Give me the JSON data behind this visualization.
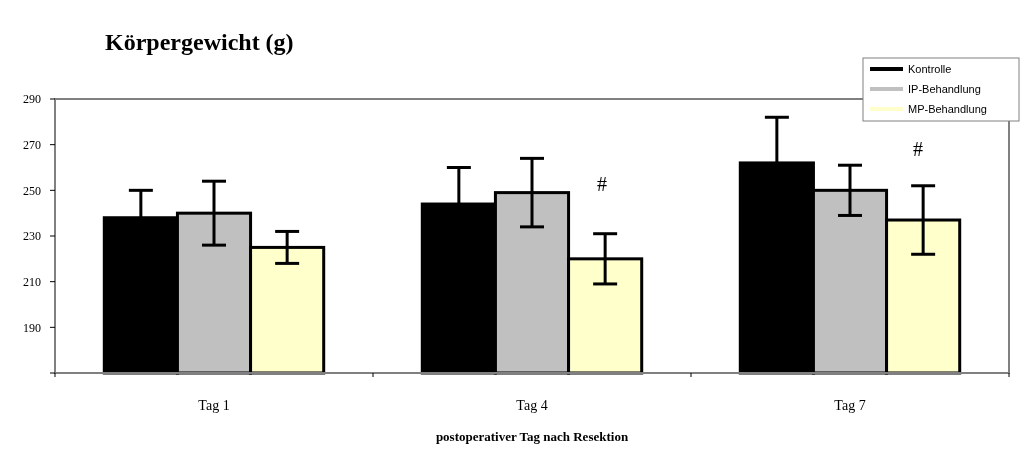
{
  "chart_data": {
    "type": "bar",
    "title": "Körpergewicht (g)",
    "xlabel": "postoperativer Tag nach Resektion",
    "categories": [
      "Tag 1",
      "Tag 4",
      "Tag 7"
    ],
    "series": [
      {
        "name": "Kontrolle",
        "color": "#000000",
        "values": [
          238,
          244,
          262
        ],
        "errors": [
          12,
          16,
          20
        ]
      },
      {
        "name": "IP-Behandlung",
        "color": "#c0c0c0",
        "values": [
          240,
          249,
          250
        ],
        "errors": [
          14,
          15,
          11
        ]
      },
      {
        "name": "MP-Behandlung",
        "color": "#ffffcc",
        "values": [
          225,
          220,
          237
        ],
        "errors": [
          7,
          11,
          15
        ]
      }
    ],
    "ylim": [
      170,
      290
    ],
    "yticks": [
      {
        "value": 170,
        "label": null
      },
      190,
      210,
      230,
      250,
      270,
      290
    ],
    "annotations": [
      "#",
      "#"
    ],
    "grid": false,
    "legend": "top right"
  }
}
